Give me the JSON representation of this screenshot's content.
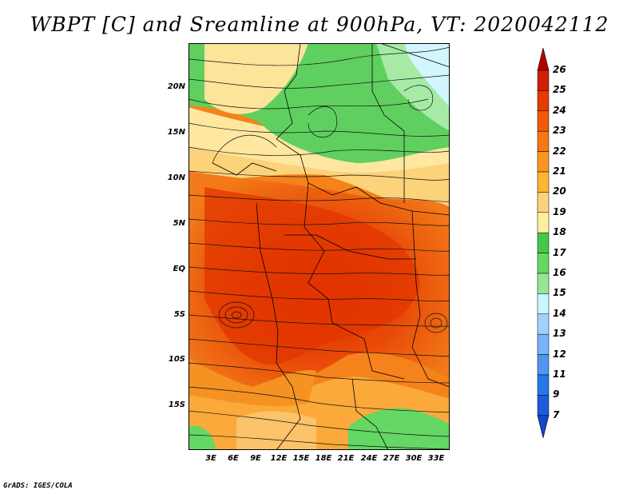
{
  "title": "WBPT [C] and Sreamline at 900hPa, VT: 2020042112",
  "credit": "GrADS: IGES/COLA",
  "lat_ticks": [
    "20N",
    "15N",
    "10N",
    "5N",
    "EQ",
    "5S",
    "10S",
    "15S"
  ],
  "lon_ticks": [
    "3E",
    "6E",
    "9E",
    "12E",
    "15E",
    "18E",
    "21E",
    "24E",
    "27E",
    "30E",
    "33E"
  ],
  "colorbar": {
    "labels": [
      "26",
      "25",
      "24",
      "23",
      "22",
      "21",
      "20",
      "19",
      "18",
      "17",
      "16",
      "15",
      "14",
      "13",
      "12",
      "11",
      "9",
      "7"
    ],
    "colors": [
      "#b40000",
      "#d21e00",
      "#e63c00",
      "#f05a0a",
      "#f57814",
      "#fa961e",
      "#ffb432",
      "#fcd27a",
      "#fff0a0",
      "#46c846",
      "#64d764",
      "#96e696",
      "#c8f5ff",
      "#a0d2ff",
      "#78b4fa",
      "#5096f0",
      "#2878e6",
      "#1e5adc",
      "#1446c8"
    ]
  }
}
